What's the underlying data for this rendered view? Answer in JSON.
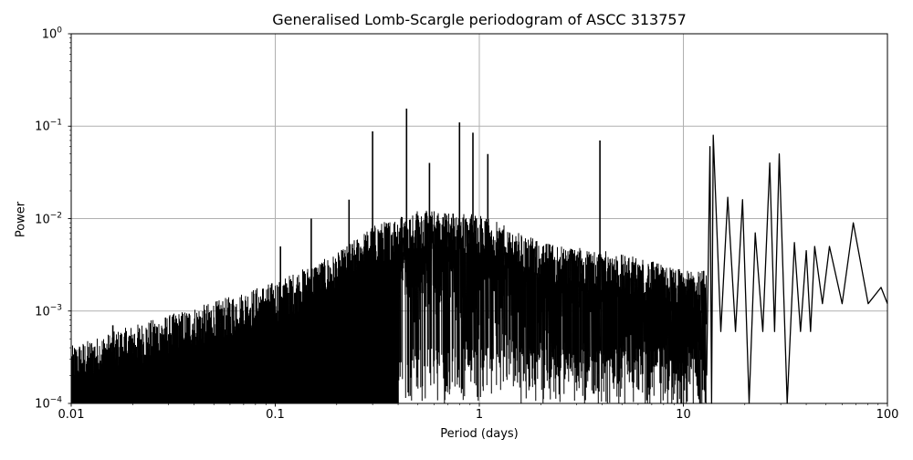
{
  "chart_data": {
    "type": "line",
    "title": "Generalised Lomb-Scargle periodogram of ASCC 313757",
    "xlabel": "Period (days)",
    "ylabel": "Power",
    "xscale": "log",
    "yscale": "log",
    "xlim": [
      0.01,
      100
    ],
    "ylim": [
      0.0001,
      1
    ],
    "grid": true,
    "line_color": "#000000",
    "grid_color": "#b0b0b0",
    "x_ticks": [
      {
        "value": 0.01,
        "label": "0.01"
      },
      {
        "value": 0.1,
        "label": "0.1"
      },
      {
        "value": 1,
        "label": "1"
      },
      {
        "value": 10,
        "label": "10"
      },
      {
        "value": 100,
        "label": "100"
      }
    ],
    "y_ticks": [
      {
        "value": 1,
        "base": "10",
        "exp": "0"
      },
      {
        "value": 0.1,
        "base": "10",
        "exp": "−1"
      },
      {
        "value": 0.01,
        "base": "10",
        "exp": "−2"
      },
      {
        "value": 0.001,
        "base": "10",
        "exp": "−3"
      },
      {
        "value": 0.0001,
        "base": "10",
        "exp": "−4"
      }
    ],
    "envelope": {
      "x": [
        0.01,
        0.02,
        0.05,
        0.1,
        0.2,
        0.3,
        0.5,
        1,
        2,
        5,
        10,
        13
      ],
      "upper_power": [
        0.0003,
        0.0005,
        0.0009,
        0.0015,
        0.003,
        0.006,
        0.009,
        0.008,
        0.004,
        0.003,
        0.002,
        0.002
      ]
    },
    "notable_peaks": [
      {
        "period": 0.016,
        "power": 0.0007
      },
      {
        "period": 0.106,
        "power": 0.005
      },
      {
        "period": 0.15,
        "power": 0.01
      },
      {
        "period": 0.23,
        "power": 0.016
      },
      {
        "period": 0.3,
        "power": 0.088
      },
      {
        "period": 0.44,
        "power": 0.155
      },
      {
        "period": 0.57,
        "power": 0.04
      },
      {
        "period": 0.8,
        "power": 0.11
      },
      {
        "period": 0.93,
        "power": 0.085
      },
      {
        "period": 1.1,
        "power": 0.05
      },
      {
        "period": 3.9,
        "power": 0.07
      },
      {
        "period": 13.5,
        "power": 0.06
      },
      {
        "period": 14.0,
        "power": 0.08
      },
      {
        "period": 16.5,
        "power": 0.017
      },
      {
        "period": 19.5,
        "power": 0.016
      },
      {
        "period": 22.5,
        "power": 0.007
      },
      {
        "period": 26.5,
        "power": 0.04
      },
      {
        "period": 29.5,
        "power": 0.05
      },
      {
        "period": 35,
        "power": 0.0055
      },
      {
        "period": 40,
        "power": 0.0045
      },
      {
        "period": 44,
        "power": 0.005
      },
      {
        "period": 52,
        "power": 0.005
      },
      {
        "period": 68,
        "power": 0.009
      },
      {
        "period": 93,
        "power": 0.0018
      }
    ]
  }
}
